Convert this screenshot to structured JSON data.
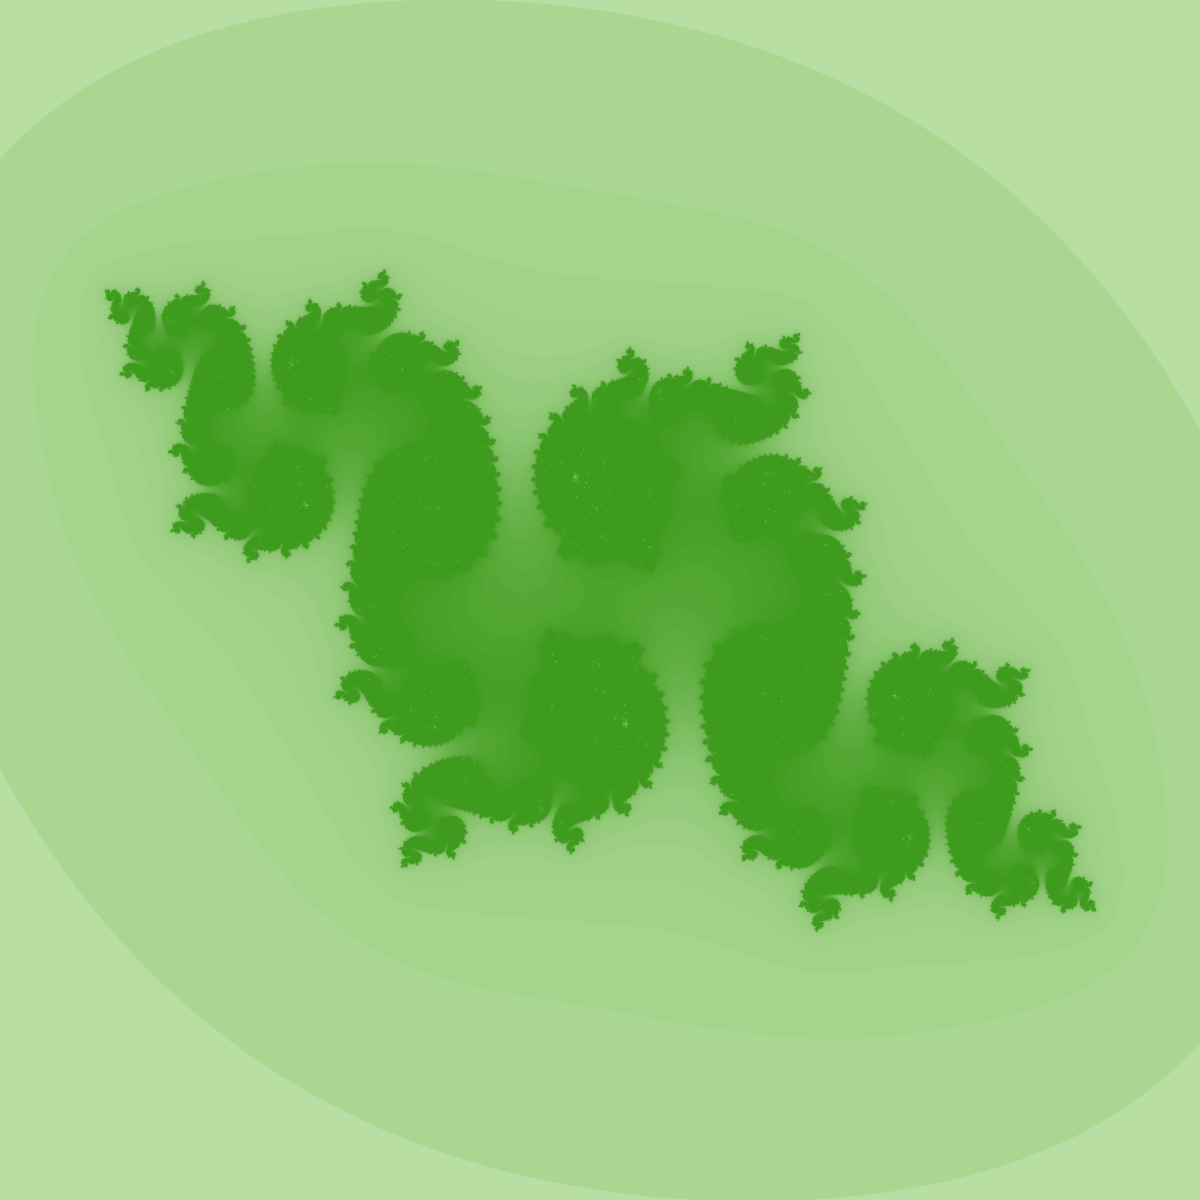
{
  "image": {
    "subject": "julia-set-fractal",
    "background_color": "#ffffff",
    "palette": {
      "outer_band": "#c8e5b8",
      "mid_band": "#a9d691",
      "edge_dark": "#3f9b1e",
      "interior": "#62cb2b"
    },
    "fractal": {
      "c_real": -0.77,
      "c_imag": 0.12,
      "max_iterations": 220
    }
  }
}
